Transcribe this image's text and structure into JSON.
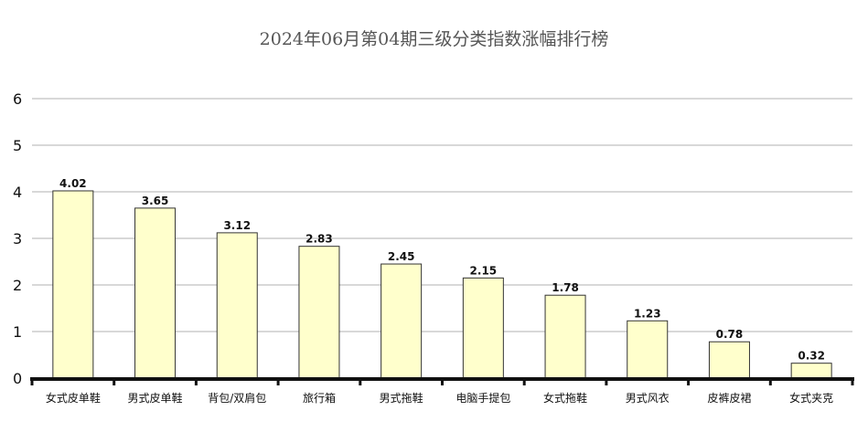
{
  "colors": {
    "bar_fill": "#ffffcc",
    "bar_stroke": "#333333",
    "grid": "#b0b0b0",
    "axis": "#111111",
    "title": "#555555"
  },
  "chart_data": {
    "type": "bar",
    "title": "2024年06月第04期三级分类指数涨幅排行榜",
    "xlabel": "",
    "ylabel": "",
    "ylim": [
      0,
      6
    ],
    "yticks": [
      0,
      1,
      2,
      3,
      4,
      5,
      6
    ],
    "grid": true,
    "legend": "none",
    "categories": [
      "女式皮单鞋",
      "男式皮单鞋",
      "背包/双肩包",
      "旅行箱",
      "男式拖鞋",
      "电脑手提包",
      "女式拖鞋",
      "男式风衣",
      "皮裤皮裙",
      "女式夹克"
    ],
    "values": [
      4.02,
      3.65,
      3.12,
      2.83,
      2.45,
      2.15,
      1.78,
      1.23,
      0.78,
      0.32
    ],
    "data_labels": [
      "4.02",
      "3.65",
      "3.12",
      "2.83",
      "2.45",
      "2.15",
      "1.78",
      "1.23",
      "0.78",
      "0.32"
    ]
  }
}
